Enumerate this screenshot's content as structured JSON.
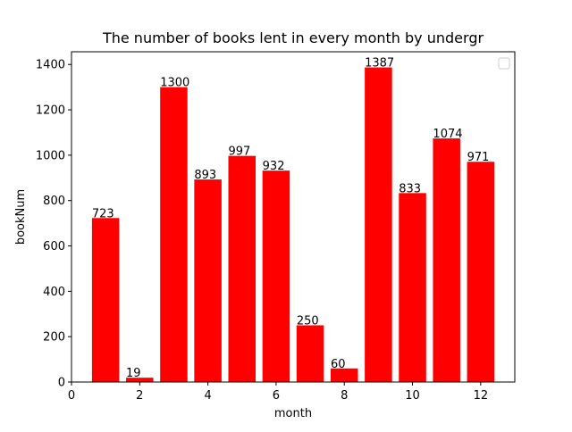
{
  "chart_data": {
    "type": "bar",
    "title": "The number of books lent in every month by undergr",
    "xlabel": "month",
    "ylabel": "bookNum",
    "x": [
      1,
      2,
      3,
      4,
      5,
      6,
      7,
      8,
      9,
      10,
      11,
      12
    ],
    "values": [
      723,
      19,
      1300,
      893,
      997,
      932,
      250,
      60,
      1387,
      833,
      1074,
      971
    ],
    "data_labels": [
      "723",
      "19",
      "1300",
      "893",
      "997",
      "932",
      "250",
      "60",
      "1387",
      "833",
      "1074",
      "971"
    ],
    "xlim": [
      0,
      13
    ],
    "ylim": [
      0,
      1456
    ],
    "xticks": [
      0,
      2,
      4,
      6,
      8,
      10,
      12
    ],
    "xtick_labels": [
      "0",
      "2",
      "4",
      "6",
      "8",
      "10",
      "12"
    ],
    "yticks": [
      0,
      200,
      400,
      600,
      800,
      1000,
      1200,
      1400
    ],
    "ytick_labels": [
      "0",
      "200",
      "400",
      "600",
      "800",
      "1000",
      "1200",
      "1400"
    ],
    "bar_width": 0.8,
    "bar_color": "#ff0000",
    "grid": false,
    "legend": {
      "placement": "top-right",
      "entries": []
    }
  }
}
